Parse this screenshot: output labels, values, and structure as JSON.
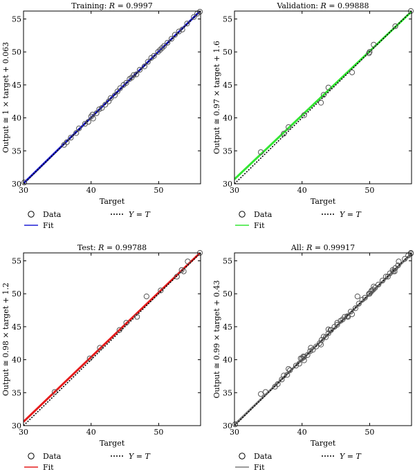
{
  "chart_data": [
    {
      "type": "scatter",
      "title_prefix": "Training: ",
      "title_r": "R",
      "title_value": " = 0.9997",
      "xlabel": "Target",
      "ylabel": "Output ≅ 1 × target + 0.063",
      "xlim": [
        30,
        56.2
      ],
      "ylim": [
        30,
        56.2
      ],
      "xticks": [
        30,
        40,
        50
      ],
      "yticks": [
        30,
        35,
        40,
        45,
        50,
        55
      ],
      "grid": false,
      "fit": {
        "slope": 1.0,
        "intercept": 0.063,
        "color": "#1f1fd6"
      },
      "legend": {
        "data": "Data",
        "fit": "Fit",
        "yt_prefix": "Y",
        "yt_eq": " = ",
        "yt_suffix": "T",
        "position": "below"
      },
      "points": [
        [
          30.1,
          30.2
        ],
        [
          36.0,
          35.9
        ],
        [
          36.4,
          36.3
        ],
        [
          37.0,
          37.0
        ],
        [
          37.8,
          37.7
        ],
        [
          38.2,
          38.4
        ],
        [
          39.1,
          39.1
        ],
        [
          39.6,
          39.4
        ],
        [
          40.0,
          40.2
        ],
        [
          40.2,
          40.5
        ],
        [
          40.3,
          39.9
        ],
        [
          40.8,
          40.7
        ],
        [
          41.2,
          41.3
        ],
        [
          41.6,
          41.5
        ],
        [
          42.1,
          42.0
        ],
        [
          42.6,
          42.5
        ],
        [
          42.9,
          43.0
        ],
        [
          43.5,
          43.4
        ],
        [
          43.9,
          44.0
        ],
        [
          44.3,
          44.5
        ],
        [
          44.8,
          45.0
        ],
        [
          45.2,
          45.3
        ],
        [
          45.7,
          45.9
        ],
        [
          46.0,
          46.1
        ],
        [
          46.3,
          46.5
        ],
        [
          46.7,
          46.6
        ],
        [
          47.2,
          47.3
        ],
        [
          47.9,
          47.8
        ],
        [
          48.4,
          48.5
        ],
        [
          48.9,
          49.1
        ],
        [
          49.3,
          49.4
        ],
        [
          49.9,
          50.0
        ],
        [
          50.2,
          50.3
        ],
        [
          50.5,
          50.6
        ],
        [
          50.8,
          50.9
        ],
        [
          51.3,
          51.4
        ],
        [
          51.9,
          52.0
        ],
        [
          52.4,
          52.6
        ],
        [
          53.0,
          53.1
        ],
        [
          53.5,
          53.4
        ],
        [
          54.2,
          54.3
        ],
        [
          55.2,
          55.3
        ],
        [
          55.7,
          55.8
        ],
        [
          56.1,
          56.1
        ]
      ]
    },
    {
      "type": "scatter",
      "title_prefix": "Validation: ",
      "title_r": "R",
      "title_value": " = 0.99888",
      "xlabel": "Target",
      "ylabel": "Output ≅ 0.97 × target + 1.6",
      "xlim": [
        30,
        56.2
      ],
      "ylim": [
        30,
        56.2
      ],
      "xticks": [
        30,
        40,
        50
      ],
      "yticks": [
        30,
        35,
        40,
        45,
        50,
        55
      ],
      "grid": false,
      "fit": {
        "slope": 0.97,
        "intercept": 1.6,
        "color": "#33e633"
      },
      "legend": {
        "data": "Data",
        "fit": "Fit",
        "yt_prefix": "Y",
        "yt_eq": " = ",
        "yt_suffix": "T",
        "position": "below"
      },
      "points": [
        [
          33.9,
          34.8
        ],
        [
          37.3,
          37.6
        ],
        [
          38.0,
          38.6
        ],
        [
          40.3,
          40.4
        ],
        [
          42.8,
          42.3
        ],
        [
          43.2,
          43.5
        ],
        [
          43.9,
          44.6
        ],
        [
          47.4,
          46.9
        ],
        [
          49.9,
          49.8
        ],
        [
          50.0,
          50.0
        ],
        [
          50.6,
          51.1
        ],
        [
          53.8,
          53.9
        ],
        [
          56.1,
          56.2
        ]
      ]
    },
    {
      "type": "scatter",
      "title_prefix": "Test: ",
      "title_r": "R",
      "title_value": " = 0.99788",
      "xlabel": "Target",
      "ylabel": "Output ≅ 0.98 × target + 1.2",
      "xlim": [
        30,
        56.2
      ],
      "ylim": [
        30,
        56.2
      ],
      "xticks": [
        30,
        40,
        50
      ],
      "yticks": [
        30,
        35,
        40,
        45,
        50,
        55
      ],
      "grid": false,
      "fit": {
        "slope": 0.98,
        "intercept": 1.2,
        "color": "#e61c1c"
      },
      "legend": {
        "data": "Data",
        "fit": "Fit",
        "yt_prefix": "Y",
        "yt_eq": " = ",
        "yt_suffix": "T",
        "position": "below"
      },
      "points": [
        [
          34.6,
          35.1
        ],
        [
          39.8,
          40.2
        ],
        [
          41.3,
          41.8
        ],
        [
          44.2,
          44.5
        ],
        [
          45.2,
          45.6
        ],
        [
          46.8,
          46.5
        ],
        [
          48.2,
          49.6
        ],
        [
          50.3,
          50.5
        ],
        [
          52.7,
          52.6
        ],
        [
          53.4,
          53.6
        ],
        [
          53.7,
          53.4
        ],
        [
          54.3,
          54.9
        ],
        [
          56.1,
          56.2
        ]
      ]
    },
    {
      "type": "scatter",
      "title_prefix": "All: ",
      "title_r": "R",
      "title_value": " = 0.99917",
      "xlabel": "Target",
      "ylabel": "Output ≅ 0.99 × target + 0.43",
      "xlim": [
        30,
        56.2
      ],
      "ylim": [
        30,
        56.2
      ],
      "xticks": [
        30,
        40,
        50
      ],
      "yticks": [
        30,
        35,
        40,
        45,
        50,
        55
      ],
      "grid": false,
      "fit": {
        "slope": 0.99,
        "intercept": 0.43,
        "color": "#7a7a7a"
      },
      "legend": {
        "data": "Data",
        "fit": "Fit",
        "yt_prefix": "Y",
        "yt_eq": " = ",
        "yt_suffix": "T",
        "position": "below"
      },
      "points": [
        [
          30.1,
          30.2
        ],
        [
          33.9,
          34.8
        ],
        [
          34.6,
          35.1
        ],
        [
          36.0,
          35.9
        ],
        [
          36.4,
          36.3
        ],
        [
          37.0,
          37.0
        ],
        [
          37.3,
          37.6
        ],
        [
          37.8,
          37.7
        ],
        [
          38.0,
          38.6
        ],
        [
          38.2,
          38.4
        ],
        [
          39.1,
          39.1
        ],
        [
          39.6,
          39.4
        ],
        [
          39.8,
          40.2
        ],
        [
          40.0,
          40.2
        ],
        [
          40.2,
          40.5
        ],
        [
          40.3,
          40.4
        ],
        [
          40.3,
          39.9
        ],
        [
          40.8,
          40.7
        ],
        [
          41.2,
          41.3
        ],
        [
          41.3,
          41.8
        ],
        [
          41.6,
          41.5
        ],
        [
          42.1,
          42.0
        ],
        [
          42.6,
          42.5
        ],
        [
          42.8,
          42.3
        ],
        [
          42.9,
          43.0
        ],
        [
          43.2,
          43.5
        ],
        [
          43.5,
          43.4
        ],
        [
          43.9,
          44.0
        ],
        [
          43.9,
          44.6
        ],
        [
          44.2,
          44.5
        ],
        [
          44.3,
          44.5
        ],
        [
          44.8,
          45.0
        ],
        [
          45.2,
          45.3
        ],
        [
          45.2,
          45.6
        ],
        [
          45.7,
          45.9
        ],
        [
          46.0,
          46.1
        ],
        [
          46.3,
          46.5
        ],
        [
          46.7,
          46.6
        ],
        [
          46.8,
          46.5
        ],
        [
          47.2,
          47.3
        ],
        [
          47.4,
          46.9
        ],
        [
          47.9,
          47.8
        ],
        [
          48.2,
          49.6
        ],
        [
          48.4,
          48.5
        ],
        [
          48.9,
          49.1
        ],
        [
          49.3,
          49.4
        ],
        [
          49.9,
          50.0
        ],
        [
          50.0,
          50.0
        ],
        [
          50.2,
          50.3
        ],
        [
          50.3,
          50.5
        ],
        [
          50.5,
          50.6
        ],
        [
          50.6,
          51.1
        ],
        [
          50.8,
          50.9
        ],
        [
          51.3,
          51.4
        ],
        [
          51.9,
          52.0
        ],
        [
          52.4,
          52.6
        ],
        [
          52.7,
          52.6
        ],
        [
          53.0,
          53.1
        ],
        [
          53.4,
          53.6
        ],
        [
          53.5,
          53.4
        ],
        [
          53.7,
          53.4
        ],
        [
          53.8,
          53.9
        ],
        [
          54.2,
          54.3
        ],
        [
          54.3,
          54.9
        ],
        [
          55.2,
          55.3
        ],
        [
          55.7,
          55.8
        ],
        [
          56.1,
          56.1
        ],
        [
          56.1,
          56.2
        ]
      ]
    }
  ]
}
